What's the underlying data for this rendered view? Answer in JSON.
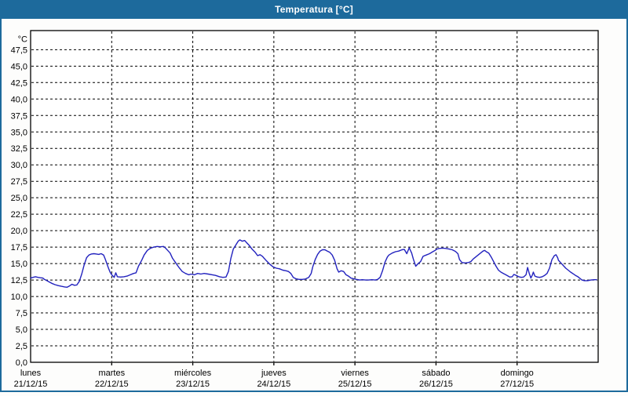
{
  "window": {
    "title": "Temperatura [°C]"
  },
  "colors": {
    "titlebar": "#1d6a9c",
    "frame": "#1d6a9c",
    "line": "#2222be",
    "grid": "#000000",
    "plot_border": "#000000",
    "background": "#fdfdfc",
    "text": "#000000"
  },
  "chart_data": {
    "type": "line",
    "title": "Temperatura [°C]",
    "y_axis_unit": "°C",
    "ylim": [
      0,
      50.4
    ],
    "grid": "dashed",
    "legend_position": "none",
    "y_ticks": [
      0,
      2.5,
      5,
      7.5,
      10,
      12.5,
      15,
      17.5,
      20,
      22.5,
      25,
      27.5,
      30,
      32.5,
      35,
      37.5,
      40,
      42.5,
      45,
      47.5
    ],
    "y_tick_labels": [
      "0,0",
      "2,5",
      "5,0",
      "7,5",
      "10,0",
      "12,5",
      "15,0",
      "17,5",
      "20,0",
      "22,5",
      "25,0",
      "27,5",
      "30,0",
      "32,5",
      "35,0",
      "37,5",
      "40,0",
      "42,5",
      "45,0",
      "47,5"
    ],
    "x_categories": [
      {
        "day": "lunes",
        "date": "21/12/15"
      },
      {
        "day": "martes",
        "date": "22/12/15"
      },
      {
        "day": "miércoles",
        "date": "23/12/15"
      },
      {
        "day": "jueves",
        "date": "24/12/15"
      },
      {
        "day": "viernes",
        "date": "25/12/15"
      },
      {
        "day": "sábado",
        "date": "26/12/15"
      },
      {
        "day": "domingo",
        "date": "27/12/15"
      }
    ],
    "x_range_days": [
      0,
      7
    ],
    "series": [
      {
        "name": "Temperatura",
        "color": "#2222be",
        "points": [
          [
            0.0,
            12.8
          ],
          [
            0.03,
            12.9
          ],
          [
            0.06,
            13.0
          ],
          [
            0.09,
            12.9
          ],
          [
            0.12,
            12.85
          ],
          [
            0.15,
            12.8
          ],
          [
            0.17,
            12.6
          ],
          [
            0.2,
            12.4
          ],
          [
            0.23,
            12.2
          ],
          [
            0.26,
            12.0
          ],
          [
            0.3,
            11.8
          ],
          [
            0.34,
            11.65
          ],
          [
            0.38,
            11.55
          ],
          [
            0.42,
            11.45
          ],
          [
            0.45,
            11.4
          ],
          [
            0.48,
            11.6
          ],
          [
            0.51,
            11.85
          ],
          [
            0.54,
            11.7
          ],
          [
            0.57,
            11.75
          ],
          [
            0.6,
            12.3
          ],
          [
            0.63,
            13.4
          ],
          [
            0.66,
            14.8
          ],
          [
            0.69,
            15.9
          ],
          [
            0.72,
            16.3
          ],
          [
            0.75,
            16.45
          ],
          [
            0.78,
            16.5
          ],
          [
            0.81,
            16.45
          ],
          [
            0.84,
            16.4
          ],
          [
            0.87,
            16.5
          ],
          [
            0.9,
            16.3
          ],
          [
            0.92,
            15.7
          ],
          [
            0.94,
            15.0
          ],
          [
            0.96,
            14.3
          ],
          [
            0.98,
            13.7
          ],
          [
            1.0,
            13.3
          ],
          [
            1.03,
            12.9
          ],
          [
            1.05,
            13.6
          ],
          [
            1.07,
            13.0
          ],
          [
            1.11,
            12.95
          ],
          [
            1.15,
            13.0
          ],
          [
            1.19,
            13.1
          ],
          [
            1.23,
            13.3
          ],
          [
            1.27,
            13.5
          ],
          [
            1.3,
            13.6
          ],
          [
            1.33,
            14.6
          ],
          [
            1.37,
            15.5
          ],
          [
            1.4,
            16.3
          ],
          [
            1.44,
            17.0
          ],
          [
            1.48,
            17.35
          ],
          [
            1.52,
            17.5
          ],
          [
            1.56,
            17.6
          ],
          [
            1.6,
            17.55
          ],
          [
            1.64,
            17.6
          ],
          [
            1.66,
            17.4
          ],
          [
            1.69,
            17.0
          ],
          [
            1.72,
            16.6
          ],
          [
            1.75,
            15.8
          ],
          [
            1.79,
            15.1
          ],
          [
            1.83,
            14.4
          ],
          [
            1.87,
            13.8
          ],
          [
            1.91,
            13.5
          ],
          [
            1.95,
            13.3
          ],
          [
            1.98,
            13.4
          ],
          [
            2.02,
            13.3
          ],
          [
            2.06,
            13.5
          ],
          [
            2.1,
            13.4
          ],
          [
            2.14,
            13.5
          ],
          [
            2.19,
            13.4
          ],
          [
            2.24,
            13.3
          ],
          [
            2.28,
            13.2
          ],
          [
            2.33,
            13.0
          ],
          [
            2.37,
            12.9
          ],
          [
            2.41,
            12.95
          ],
          [
            2.44,
            13.8
          ],
          [
            2.47,
            15.8
          ],
          [
            2.5,
            17.2
          ],
          [
            2.53,
            17.8
          ],
          [
            2.56,
            18.4
          ],
          [
            2.58,
            18.6
          ],
          [
            2.61,
            18.4
          ],
          [
            2.64,
            18.5
          ],
          [
            2.67,
            18.1
          ],
          [
            2.7,
            17.7
          ],
          [
            2.73,
            17.2
          ],
          [
            2.77,
            16.7
          ],
          [
            2.8,
            16.2
          ],
          [
            2.83,
            16.35
          ],
          [
            2.86,
            16.1
          ],
          [
            2.88,
            15.8
          ],
          [
            2.91,
            15.4
          ],
          [
            2.95,
            14.9
          ],
          [
            2.99,
            14.5
          ],
          [
            3.03,
            14.3
          ],
          [
            3.07,
            14.2
          ],
          [
            3.11,
            14.0
          ],
          [
            3.15,
            13.9
          ],
          [
            3.18,
            13.8
          ],
          [
            3.21,
            13.5
          ],
          [
            3.24,
            12.9
          ],
          [
            3.27,
            12.7
          ],
          [
            3.31,
            12.6
          ],
          [
            3.35,
            12.6
          ],
          [
            3.39,
            12.65
          ],
          [
            3.43,
            12.9
          ],
          [
            3.46,
            13.5
          ],
          [
            3.48,
            14.5
          ],
          [
            3.51,
            15.6
          ],
          [
            3.54,
            16.4
          ],
          [
            3.57,
            16.9
          ],
          [
            3.6,
            17.1
          ],
          [
            3.63,
            17.1
          ],
          [
            3.66,
            16.9
          ],
          [
            3.69,
            16.7
          ],
          [
            3.72,
            16.3
          ],
          [
            3.75,
            15.5
          ],
          [
            3.78,
            14.2
          ],
          [
            3.8,
            13.7
          ],
          [
            3.83,
            13.9
          ],
          [
            3.86,
            13.8
          ],
          [
            3.89,
            13.3
          ],
          [
            3.92,
            13.1
          ],
          [
            3.95,
            12.8
          ],
          [
            3.98,
            12.7
          ],
          [
            4.02,
            12.6
          ],
          [
            4.06,
            12.5
          ],
          [
            4.09,
            12.55
          ],
          [
            4.13,
            12.5
          ],
          [
            4.17,
            12.5
          ],
          [
            4.21,
            12.55
          ],
          [
            4.25,
            12.5
          ],
          [
            4.28,
            12.6
          ],
          [
            4.31,
            12.9
          ],
          [
            4.34,
            13.9
          ],
          [
            4.37,
            15.2
          ],
          [
            4.4,
            16.0
          ],
          [
            4.42,
            16.3
          ],
          [
            4.46,
            16.6
          ],
          [
            4.5,
            16.8
          ],
          [
            4.54,
            16.9
          ],
          [
            4.58,
            17.1
          ],
          [
            4.61,
            17.15
          ],
          [
            4.64,
            16.5
          ],
          [
            4.67,
            17.4
          ],
          [
            4.7,
            16.6
          ],
          [
            4.72,
            15.7
          ],
          [
            4.75,
            14.6
          ],
          [
            4.78,
            15.0
          ],
          [
            4.81,
            15.3
          ],
          [
            4.84,
            16.1
          ],
          [
            4.88,
            16.3
          ],
          [
            4.92,
            16.5
          ],
          [
            4.96,
            16.8
          ],
          [
            4.99,
            17.0
          ],
          [
            5.01,
            17.2
          ],
          [
            5.04,
            17.3
          ],
          [
            5.08,
            17.35
          ],
          [
            5.12,
            17.3
          ],
          [
            5.16,
            17.2
          ],
          [
            5.2,
            17.1
          ],
          [
            5.24,
            16.85
          ],
          [
            5.27,
            16.5
          ],
          [
            5.29,
            15.6
          ],
          [
            5.32,
            15.15
          ],
          [
            5.36,
            15.1
          ],
          [
            5.4,
            15.15
          ],
          [
            5.43,
            15.3
          ],
          [
            5.46,
            15.7
          ],
          [
            5.49,
            16.0
          ],
          [
            5.52,
            16.3
          ],
          [
            5.55,
            16.6
          ],
          [
            5.58,
            16.9
          ],
          [
            5.6,
            17.0
          ],
          [
            5.62,
            16.8
          ],
          [
            5.65,
            16.6
          ],
          [
            5.68,
            16.0
          ],
          [
            5.71,
            15.3
          ],
          [
            5.74,
            14.6
          ],
          [
            5.77,
            14.0
          ],
          [
            5.8,
            13.7
          ],
          [
            5.83,
            13.5
          ],
          [
            5.86,
            13.3
          ],
          [
            5.89,
            13.1
          ],
          [
            5.91,
            12.95
          ],
          [
            5.94,
            13.0
          ],
          [
            5.96,
            13.35
          ],
          [
            5.99,
            13.2
          ],
          [
            6.02,
            13.0
          ],
          [
            6.05,
            12.9
          ],
          [
            6.08,
            12.95
          ],
          [
            6.11,
            13.3
          ],
          [
            6.13,
            14.4
          ],
          [
            6.15,
            13.5
          ],
          [
            6.17,
            12.8
          ],
          [
            6.19,
            13.3
          ],
          [
            6.2,
            13.7
          ],
          [
            6.22,
            13.1
          ],
          [
            6.25,
            12.95
          ],
          [
            6.28,
            12.9
          ],
          [
            6.31,
            13.0
          ],
          [
            6.34,
            13.2
          ],
          [
            6.37,
            13.5
          ],
          [
            6.4,
            14.3
          ],
          [
            6.43,
            15.6
          ],
          [
            6.46,
            16.2
          ],
          [
            6.48,
            16.35
          ],
          [
            6.5,
            15.9
          ],
          [
            6.51,
            15.5
          ],
          [
            6.54,
            15.1
          ],
          [
            6.57,
            14.7
          ],
          [
            6.6,
            14.3
          ],
          [
            6.63,
            14.0
          ],
          [
            6.66,
            13.7
          ],
          [
            6.69,
            13.45
          ],
          [
            6.72,
            13.2
          ],
          [
            6.75,
            13.0
          ],
          [
            6.78,
            12.7
          ],
          [
            6.8,
            12.5
          ],
          [
            6.83,
            12.4
          ],
          [
            6.87,
            12.4
          ],
          [
            6.91,
            12.5
          ],
          [
            6.95,
            12.55
          ],
          [
            6.98,
            12.55
          ]
        ]
      }
    ]
  }
}
